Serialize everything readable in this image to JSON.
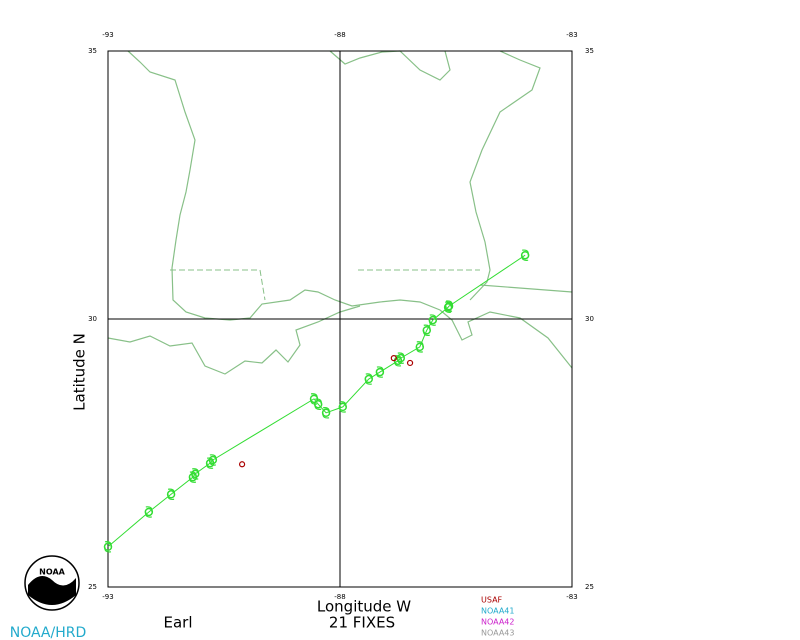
{
  "chart_data": {
    "type": "track",
    "xlabel": "Longitude W",
    "ylabel": "Latitude N",
    "storm": "Earl",
    "fixes_label": "21 FIXES",
    "credit": "NOAA/HRD",
    "logo_text": "NOAA",
    "xlim": [
      -93,
      -83
    ],
    "ylim": [
      25,
      35
    ],
    "xticks": [
      -93,
      -88,
      -83
    ],
    "yticks": [
      25,
      30,
      35
    ],
    "grid_x": [
      -88
    ],
    "grid_y": [
      30
    ],
    "series": [
      {
        "color": "#33dd33",
        "x": [
          -93.0,
          -92.12,
          -91.64,
          -91.17,
          -91.12,
          -90.8,
          -90.74,
          -88.56,
          -88.47,
          -88.3,
          -87.94,
          -87.38,
          -87.14,
          -86.75,
          -86.69,
          -86.28,
          -86.13,
          -86.0,
          -85.67,
          -85.65,
          -84.01
        ],
        "values": [
          25.75,
          26.4,
          26.73,
          27.05,
          27.11,
          27.31,
          27.37,
          28.51,
          28.41,
          28.25,
          28.36,
          28.88,
          29.01,
          29.22,
          29.27,
          29.48,
          29.79,
          29.98,
          30.22,
          30.24,
          31.19
        ]
      },
      {
        "name": "USAF",
        "color": "#aa0000",
        "x": [
          -90.11,
          -86.84,
          -86.49
        ],
        "values": [
          27.29,
          29.27,
          29.18
        ]
      },
      {
        "name": "NOAA41",
        "color": "#22aacc",
        "x": [],
        "values": []
      },
      {
        "name": "NOAA42",
        "color": "#cc22cc",
        "x": [],
        "values": []
      },
      {
        "name": "NOAA43",
        "color": "#999999",
        "x": [],
        "values": []
      }
    ]
  }
}
